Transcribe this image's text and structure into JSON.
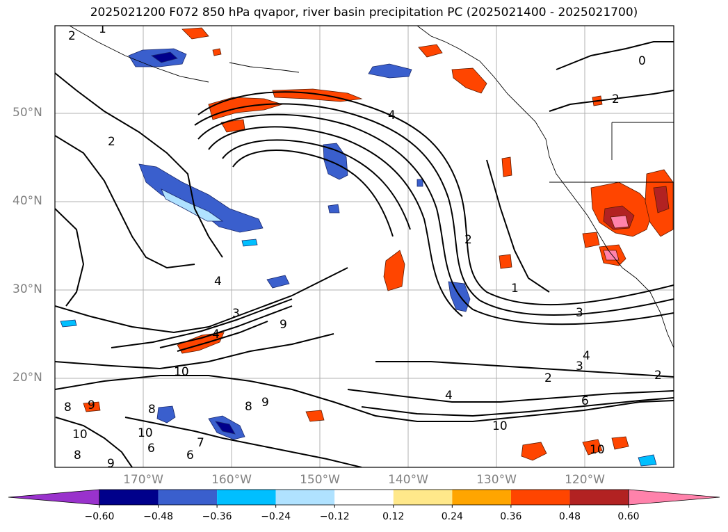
{
  "title": "2025021200 F072 850 hPa qvapor, river basin precipitation PC (2025021400 - 2025021700)",
  "lat_labels": [
    "50°N",
    "40°N",
    "30°N",
    "20°N"
  ],
  "lon_labels": [
    "170°W",
    "160°W",
    "150°W",
    "140°W",
    "130°W",
    "120°W"
  ],
  "contour_labels": [
    "1",
    "2",
    "2",
    "0",
    "4",
    "2",
    "2",
    "1",
    "3",
    "4",
    "3",
    "9",
    "4",
    "10",
    "3",
    "4",
    "2",
    "6",
    "8",
    "9",
    "10",
    "8",
    "9",
    "8",
    "10",
    "6",
    "7",
    "6",
    "2",
    "4",
    "10",
    "9",
    "8",
    "10"
  ],
  "colorbar": {
    "ticks": [
      "−0.60",
      "−0.48",
      "−0.36",
      "−0.24",
      "−0.12",
      "0.12",
      "0.24",
      "0.36",
      "0.48",
      "0.60"
    ],
    "colors": [
      "#9932cc",
      "#00008b",
      "#3a5fcd",
      "#00bfff",
      "#b0e2ff",
      "#ffffff",
      "#ffe88a",
      "#ffa500",
      "#ff4500",
      "#b22222",
      "#ff82ab"
    ]
  }
}
